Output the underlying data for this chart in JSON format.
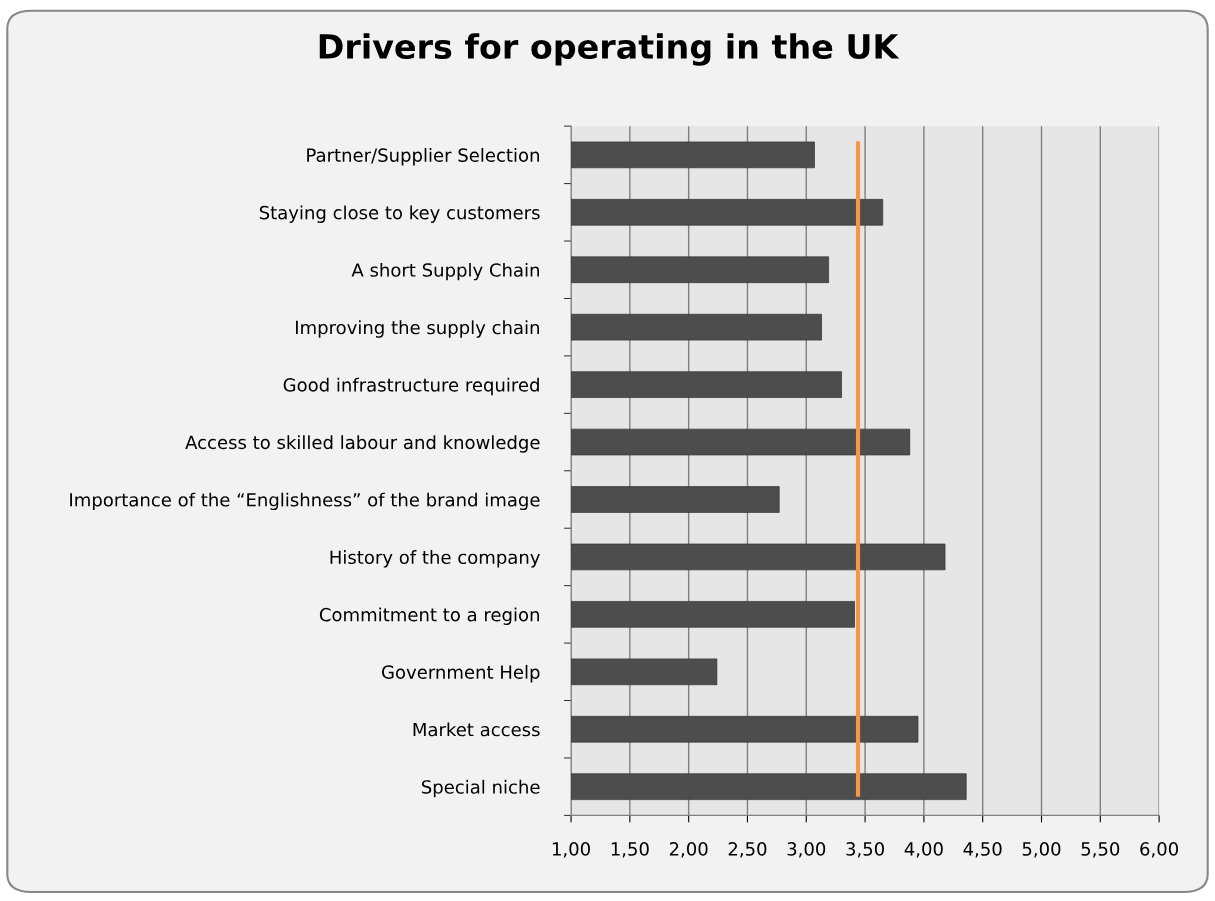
{
  "chart_data": {
    "type": "bar",
    "orientation": "horizontal",
    "title": "Drivers for operating in the UK",
    "categories": [
      "Partner/Supplier Selection",
      "Staying close to key customers",
      "A short Supply Chain",
      "Improving the supply chain",
      "Good infrastructure required",
      "Access to skilled labour and knowledge",
      "Importance of the “Englishness” of the brand image",
      "History of the company",
      "Commitment to a region",
      "Government Help",
      "Market access",
      "Special niche"
    ],
    "values": [
      3.07,
      3.65,
      3.19,
      3.13,
      3.3,
      3.88,
      2.77,
      4.18,
      3.41,
      2.24,
      3.95,
      4.36
    ],
    "color": "#4d4d4d",
    "xlim": [
      1,
      6
    ],
    "xticks": [
      {
        "value": 1,
        "label": "1,00"
      },
      {
        "value": 1.5,
        "label": "1,50"
      },
      {
        "value": 2,
        "label": "2,00"
      },
      {
        "value": 2.5,
        "label": "2,50"
      },
      {
        "value": 3,
        "label": "3,00"
      },
      {
        "value": 3.5,
        "label": "3,50"
      },
      {
        "value": 4,
        "label": "4,00"
      },
      {
        "value": 4.5,
        "label": "4,50"
      },
      {
        "value": 5,
        "label": "5,00"
      },
      {
        "value": 5.5,
        "label": "5,50"
      },
      {
        "value": 6,
        "label": "6,00"
      }
    ],
    "ref_lines": [
      {
        "axis": "x",
        "value": 3.44,
        "label": null,
        "color": "#f79646"
      }
    ],
    "grid": "x"
  }
}
